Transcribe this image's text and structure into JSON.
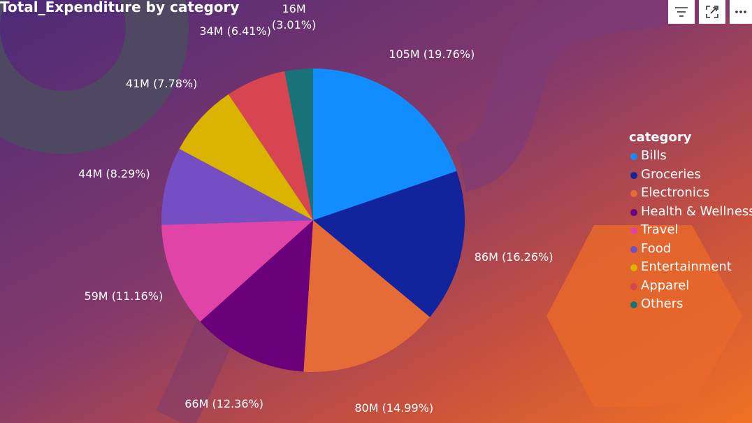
{
  "visual": {
    "title": "Total_Expenditure by category"
  },
  "toolbar": {
    "icons": [
      "filter-icon",
      "focus-mode-icon",
      "more-options-icon"
    ]
  },
  "legend": {
    "title": "category"
  },
  "colors": {
    "background_start": "#4a2a7a",
    "background_end": "#f07020"
  },
  "chart_data": {
    "type": "pie",
    "title": "Total_Expenditure by category",
    "legend_title": "category",
    "legend_position": "right",
    "slices": [
      {
        "category": "Bills",
        "value_label": "105M",
        "percent": 19.76,
        "percent_label": "(19.76%)",
        "color": "#118DFF"
      },
      {
        "category": "Groceries",
        "value_label": "86M",
        "percent": 16.26,
        "percent_label": "(16.26%)",
        "color": "#12239E"
      },
      {
        "category": "Electronics",
        "value_label": "80M",
        "percent": 14.99,
        "percent_label": "(14.99%)",
        "color": "#E66C37"
      },
      {
        "category": "Health & Wellness",
        "value_label": "66M",
        "percent": 12.36,
        "percent_label": "(12.36%)",
        "color": "#6B007B"
      },
      {
        "category": "Travel",
        "value_label": "59M",
        "percent": 11.16,
        "percent_label": "(11.16%)",
        "color": "#E044A7"
      },
      {
        "category": "Food",
        "value_label": "44M",
        "percent": 8.29,
        "percent_label": "(8.29%)",
        "color": "#744EC2"
      },
      {
        "category": "Entertainment",
        "value_label": "41M",
        "percent": 7.78,
        "percent_label": "(7.78%)",
        "color": "#D9B300"
      },
      {
        "category": "Apparel",
        "value_label": "34M",
        "percent": 6.41,
        "percent_label": "(6.41%)",
        "color": "#D64550"
      },
      {
        "category": "Others",
        "value_label": "16M",
        "percent": 3.01,
        "percent_label": "(3.01%)",
        "color": "#197278"
      }
    ]
  }
}
